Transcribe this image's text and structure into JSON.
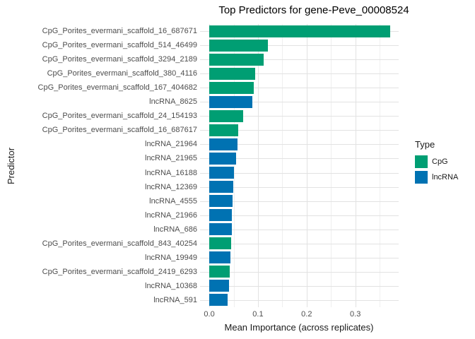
{
  "title": "Top Predictors for gene-Peve_00008524",
  "axes": {
    "x_label": "Mean Importance (across replicates)",
    "y_label": "Predictor",
    "x_tick_labels": [
      "0.0",
      "0.1",
      "0.2",
      "0.3"
    ],
    "x_tick_values": [
      0,
      0.1,
      0.2,
      0.3
    ]
  },
  "legend": {
    "title": "Type",
    "position": "right",
    "items": [
      {
        "label": "CpG",
        "color": "#009E73"
      },
      {
        "label": "lncRNA",
        "color": "#0072B2"
      }
    ]
  },
  "chart_data": {
    "type": "bar",
    "orientation": "horizontal",
    "title": "Top Predictors for gene-Peve_00008524",
    "xlabel": "Mean Importance (across replicates)",
    "ylabel": "Predictor",
    "xlim": [
      -0.019,
      0.389
    ],
    "grid": true,
    "legend_position": "right",
    "x_major_gridlines": [
      0,
      0.1,
      0.2,
      0.3
    ],
    "x_minor_gridlines": [
      0.05,
      0.15,
      0.25,
      0.35
    ],
    "categories": [
      "CpG_Porites_evermani_scaffold_16_687671",
      "CpG_Porites_evermani_scaffold_514_46499",
      "CpG_Porites_evermani_scaffold_3294_2189",
      "CpG_Porites_evermani_scaffold_380_4116",
      "CpG_Porites_evermani_scaffold_167_404682",
      "lncRNA_8625",
      "CpG_Porites_evermani_scaffold_24_154193",
      "CpG_Porites_evermani_scaffold_16_687617",
      "lncRNA_21964",
      "lncRNA_21965",
      "lncRNA_16188",
      "lncRNA_12369",
      "lncRNA_4555",
      "lncRNA_21966",
      "lncRNA_686",
      "CpG_Porites_evermani_scaffold_843_40254",
      "lncRNA_19949",
      "CpG_Porites_evermani_scaffold_2419_6293",
      "lncRNA_10368",
      "lncRNA_591"
    ],
    "series": [
      {
        "name": "Mean Importance",
        "values": [
          0.372,
          0.12,
          0.112,
          0.094,
          0.092,
          0.088,
          0.07,
          0.06,
          0.058,
          0.055,
          0.051,
          0.049,
          0.048,
          0.047,
          0.046,
          0.045,
          0.044,
          0.042,
          0.04,
          0.038
        ]
      }
    ],
    "bar_types": [
      "CpG",
      "CpG",
      "CpG",
      "CpG",
      "CpG",
      "lncRNA",
      "CpG",
      "CpG",
      "lncRNA",
      "lncRNA",
      "lncRNA",
      "lncRNA",
      "lncRNA",
      "lncRNA",
      "lncRNA",
      "CpG",
      "lncRNA",
      "CpG",
      "lncRNA",
      "lncRNA"
    ],
    "type_colors": {
      "CpG": "#009E73",
      "lncRNA": "#0072B2"
    }
  }
}
